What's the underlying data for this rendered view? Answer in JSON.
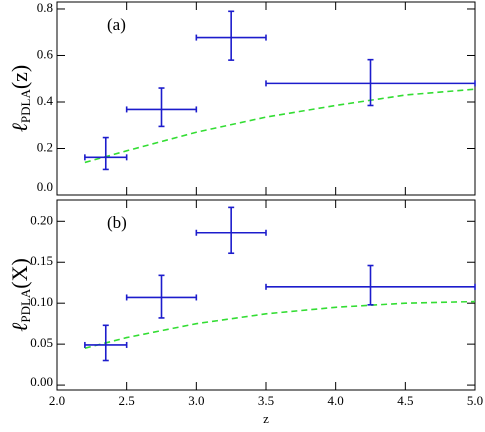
{
  "chart_data": [
    {
      "type": "errorbar",
      "annotation": "(a)",
      "y_label": [
        "ℓ",
        "PDLA",
        "(z)"
      ],
      "xlim": [
        2.0,
        5.0
      ],
      "xticks": [
        2.0,
        2.5,
        3.0,
        3.5,
        4.0,
        4.5,
        5.0
      ],
      "ylim": [
        0,
        0.83
      ],
      "yticks": [
        {
          "value": 0,
          "label": "0.0"
        },
        {
          "value": 0.2,
          "label": "0.2"
        },
        {
          "value": 0.4,
          "label": "0.4"
        },
        {
          "value": 0.6,
          "label": "0.6"
        },
        {
          "value": 0.8,
          "label": "0.8"
        }
      ],
      "series": [
        {
          "color": "#1c1ccc",
          "x": [
            2.35,
            2.75,
            3.25,
            4.25
          ],
          "xerr": [
            0.15,
            0.25,
            0.25,
            0.75
          ],
          "values": [
            0.162,
            0.368,
            0.677,
            0.48
          ],
          "yerr_minus": [
            0.052,
            0.073,
            0.097,
            0.095
          ],
          "yerr_plus": [
            0.085,
            0.092,
            0.113,
            0.102
          ]
        }
      ],
      "curve": {
        "color": "#33dd33",
        "x": [
          2.2,
          2.5,
          3.0,
          3.5,
          4.0,
          4.5,
          5.0
        ],
        "values": [
          0.14,
          0.19,
          0.27,
          0.335,
          0.385,
          0.43,
          0.455
        ]
      }
    },
    {
      "type": "errorbar",
      "annotation": "(b)",
      "y_label": [
        "ℓ",
        "PDLA",
        "(X)"
      ],
      "x_label": "z",
      "xlim": [
        2.0,
        5.0
      ],
      "xticks": [
        {
          "value": 2,
          "label": "2.0"
        },
        {
          "value": 2.5,
          "label": "2.5"
        },
        {
          "value": 3,
          "label": "3.0"
        },
        {
          "value": 3.5,
          "label": "3.5"
        },
        {
          "value": 4,
          "label": "4.0"
        },
        {
          "value": 4.5,
          "label": "4.5"
        },
        {
          "value": 5,
          "label": "5.0"
        }
      ],
      "ylim": [
        -0.006,
        0.226
      ],
      "yticks": [
        {
          "value": 0,
          "label": "0.00"
        },
        {
          "value": 0.05,
          "label": "0.05"
        },
        {
          "value": 0.1,
          "label": "0.10"
        },
        {
          "value": 0.15,
          "label": "0.15"
        },
        {
          "value": 0.2,
          "label": "0.20"
        }
      ],
      "series": [
        {
          "color": "#1c1ccc",
          "x": [
            2.35,
            2.75,
            3.25,
            4.25
          ],
          "xerr": [
            0.15,
            0.25,
            0.25,
            0.75
          ],
          "values": [
            0.049,
            0.107,
            0.186,
            0.12
          ],
          "yerr_minus": [
            0.019,
            0.025,
            0.025,
            0.022
          ],
          "yerr_plus": [
            0.024,
            0.027,
            0.031,
            0.026
          ]
        }
      ],
      "curve": {
        "color": "#33dd33",
        "x": [
          2.2,
          2.5,
          3.0,
          3.5,
          4.0,
          4.5,
          5.0
        ],
        "values": [
          0.045,
          0.058,
          0.075,
          0.087,
          0.095,
          0.1,
          0.102
        ]
      }
    }
  ]
}
